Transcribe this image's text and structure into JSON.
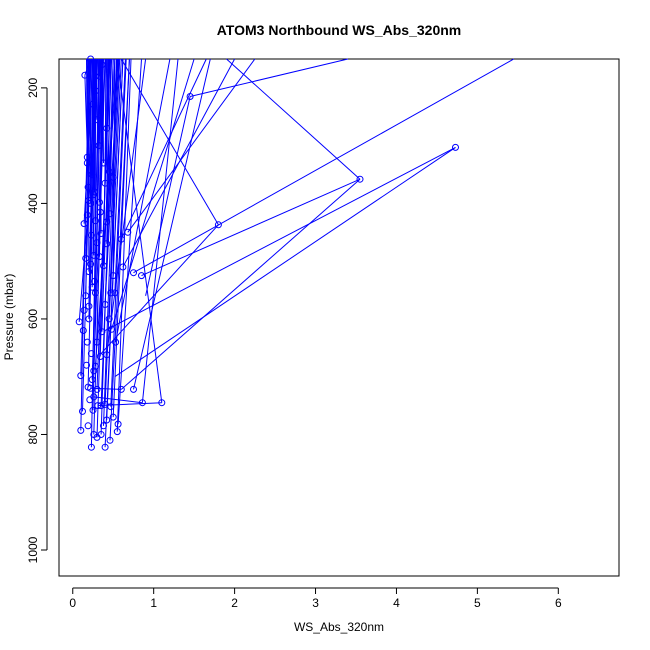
{
  "chart_data": {
    "type": "scatter",
    "title": "ATOM3 Northbound WS_Abs_320nm",
    "xlabel": "WS_Abs_320nm",
    "ylabel": "Pressure (mbar)",
    "xlim": [
      -0.17,
      6.75
    ],
    "ylim": [
      1045,
      150
    ],
    "x_reversed": false,
    "y_reversed": true,
    "x_ticks": [
      0,
      1,
      2,
      3,
      4,
      5,
      6
    ],
    "y_ticks": [
      200,
      400,
      600,
      800,
      1000
    ],
    "grid": false,
    "legend": "none",
    "series_color": "#0000ff",
    "marker": "open-circle",
    "connect_points": true,
    "points": [
      [
        0.15,
        178
      ],
      [
        0.22,
        150
      ],
      [
        0.18,
        320
      ],
      [
        0.2,
        395
      ],
      [
        0.18,
        420
      ],
      [
        0.14,
        435
      ],
      [
        0.16,
        495
      ],
      [
        0.22,
        505
      ],
      [
        0.27,
        535
      ],
      [
        0.28,
        555
      ],
      [
        0.14,
        585
      ],
      [
        0.2,
        600
      ],
      [
        0.08,
        605
      ],
      [
        0.13,
        620
      ],
      [
        0.18,
        640
      ],
      [
        0.23,
        660
      ],
      [
        0.17,
        680
      ],
      [
        0.1,
        698
      ],
      [
        0.21,
        740
      ],
      [
        0.12,
        760
      ],
      [
        0.25,
        758
      ],
      [
        0.19,
        785
      ],
      [
        0.1,
        793
      ],
      [
        0.26,
        800
      ],
      [
        0.3,
        805
      ],
      [
        0.23,
        822
      ],
      [
        0.35,
        800
      ],
      [
        0.38,
        785
      ],
      [
        0.42,
        775
      ],
      [
        0.5,
        770
      ],
      [
        0.55,
        795
      ],
      [
        0.47,
        752
      ],
      [
        0.4,
        748
      ],
      [
        0.35,
        750
      ],
      [
        0.3,
        722
      ],
      [
        0.26,
        690
      ],
      [
        0.34,
        665
      ],
      [
        0.3,
        640
      ],
      [
        0.36,
        622
      ],
      [
        0.45,
        600
      ],
      [
        0.4,
        575
      ],
      [
        0.47,
        555
      ],
      [
        0.52,
        555
      ],
      [
        0.5,
        525
      ],
      [
        0.38,
        508
      ],
      [
        0.33,
        492
      ],
      [
        0.42,
        470
      ],
      [
        0.35,
        452
      ],
      [
        0.42,
        432
      ],
      [
        0.46,
        418
      ],
      [
        0.33,
        398
      ],
      [
        0.27,
        380
      ],
      [
        0.4,
        365
      ],
      [
        0.5,
        355
      ],
      [
        0.45,
        345
      ],
      [
        0.38,
        330
      ],
      [
        0.32,
        300
      ],
      [
        0.42,
        270
      ],
      [
        0.3,
        255
      ],
      [
        0.25,
        228
      ],
      [
        0.28,
        205
      ],
      [
        0.33,
        180
      ],
      [
        0.36,
        160
      ],
      [
        0.6,
        462
      ],
      [
        0.62,
        510
      ],
      [
        0.68,
        450
      ],
      [
        0.75,
        520
      ],
      [
        0.85,
        525
      ],
      [
        0.6,
        722
      ],
      [
        0.75,
        722
      ],
      [
        0.86,
        745
      ],
      [
        1.1,
        745
      ],
      [
        0.56,
        782
      ],
      [
        0.46,
        810
      ],
      [
        0.4,
        822
      ],
      [
        0.31,
        750
      ],
      [
        0.26,
        735
      ],
      [
        0.22,
        720
      ],
      [
        1.45,
        215
      ],
      [
        1.8,
        437
      ],
      [
        3.55,
        358
      ],
      [
        4.73,
        303
      ],
      [
        0.48,
        618
      ],
      [
        0.53,
        640
      ],
      [
        0.42,
        662
      ],
      [
        0.28,
        682
      ],
      [
        0.24,
        705
      ],
      [
        0.19,
        718
      ],
      [
        0.16,
        560
      ],
      [
        0.2,
        578
      ],
      [
        0.24,
        545
      ],
      [
        0.2,
        518
      ],
      [
        0.26,
        490
      ],
      [
        0.3,
        468
      ],
      [
        0.23,
        455
      ],
      [
        0.28,
        430
      ],
      [
        0.34,
        415
      ],
      [
        0.22,
        400
      ],
      [
        0.26,
        385
      ],
      [
        0.19,
        372
      ],
      [
        0.24,
        350
      ],
      [
        0.18,
        330
      ]
    ],
    "pairs": [
      [
        [
          0.15,
          178
        ],
        [
          0.22,
          150
        ]
      ],
      [
        [
          0.18,
          320
        ],
        [
          0.22,
          150
        ]
      ],
      [
        [
          0.2,
          395
        ],
        [
          0.15,
          178
        ]
      ],
      [
        [
          0.14,
          435
        ],
        [
          0.25,
          150
        ]
      ],
      [
        [
          0.16,
          495
        ],
        [
          0.3,
          150
        ]
      ],
      [
        [
          0.2,
          600
        ],
        [
          0.28,
          150
        ]
      ],
      [
        [
          0.08,
          605
        ],
        [
          0.2,
          395
        ]
      ],
      [
        [
          0.1,
          698
        ],
        [
          0.18,
          320
        ]
      ],
      [
        [
          0.12,
          760
        ],
        [
          0.24,
          150
        ]
      ],
      [
        [
          0.25,
          758
        ],
        [
          0.35,
          150
        ]
      ],
      [
        [
          0.1,
          793
        ],
        [
          0.2,
          150
        ]
      ],
      [
        [
          0.23,
          822
        ],
        [
          0.32,
          150
        ]
      ],
      [
        [
          0.26,
          800
        ],
        [
          0.4,
          150
        ]
      ],
      [
        [
          0.3,
          805
        ],
        [
          0.45,
          150
        ]
      ],
      [
        [
          0.35,
          800
        ],
        [
          0.5,
          150
        ]
      ],
      [
        [
          0.38,
          785
        ],
        [
          0.55,
          150
        ]
      ],
      [
        [
          0.42,
          775
        ],
        [
          0.62,
          150
        ]
      ],
      [
        [
          0.5,
          770
        ],
        [
          0.7,
          150
        ]
      ],
      [
        [
          0.55,
          795
        ],
        [
          0.72,
          150
        ]
      ],
      [
        [
          0.47,
          752
        ],
        [
          0.66,
          150
        ]
      ],
      [
        [
          0.4,
          748
        ],
        [
          0.58,
          150
        ]
      ],
      [
        [
          0.35,
          750
        ],
        [
          0.52,
          150
        ]
      ],
      [
        [
          0.3,
          722
        ],
        [
          0.46,
          150
        ]
      ],
      [
        [
          0.26,
          690
        ],
        [
          0.4,
          150
        ]
      ],
      [
        [
          0.34,
          665
        ],
        [
          0.44,
          150
        ]
      ],
      [
        [
          0.3,
          640
        ],
        [
          0.38,
          150
        ]
      ],
      [
        [
          0.36,
          622
        ],
        [
          0.48,
          150
        ]
      ],
      [
        [
          0.45,
          600
        ],
        [
          0.6,
          150
        ]
      ],
      [
        [
          0.4,
          575
        ],
        [
          0.56,
          150
        ]
      ],
      [
        [
          0.47,
          555
        ],
        [
          0.54,
          150
        ]
      ],
      [
        [
          0.52,
          555
        ],
        [
          0.65,
          150
        ]
      ],
      [
        [
          0.5,
          525
        ],
        [
          0.52,
          150
        ]
      ],
      [
        [
          0.38,
          508
        ],
        [
          0.42,
          150
        ]
      ],
      [
        [
          0.33,
          492
        ],
        [
          0.36,
          150
        ]
      ],
      [
        [
          0.42,
          470
        ],
        [
          0.47,
          150
        ]
      ],
      [
        [
          0.35,
          452
        ],
        [
          0.34,
          150
        ]
      ],
      [
        [
          0.42,
          432
        ],
        [
          0.43,
          150
        ]
      ],
      [
        [
          0.46,
          418
        ],
        [
          0.5,
          150
        ]
      ],
      [
        [
          0.33,
          398
        ],
        [
          0.31,
          150
        ]
      ],
      [
        [
          0.27,
          380
        ],
        [
          0.26,
          150
        ]
      ],
      [
        [
          0.4,
          365
        ],
        [
          0.41,
          150
        ]
      ],
      [
        [
          0.5,
          355
        ],
        [
          0.57,
          150
        ]
      ],
      [
        [
          0.45,
          345
        ],
        [
          0.44,
          150
        ]
      ],
      [
        [
          0.38,
          330
        ],
        [
          0.37,
          150
        ]
      ],
      [
        [
          0.32,
          300
        ],
        [
          0.33,
          150
        ]
      ],
      [
        [
          0.42,
          270
        ],
        [
          0.46,
          150
        ]
      ],
      [
        [
          0.3,
          255
        ],
        [
          0.29,
          150
        ]
      ],
      [
        [
          0.25,
          228
        ],
        [
          0.23,
          150
        ]
      ],
      [
        [
          0.28,
          205
        ],
        [
          0.27,
          150
        ]
      ],
      [
        [
          0.33,
          180
        ],
        [
          0.34,
          150
        ]
      ],
      [
        [
          0.36,
          160
        ],
        [
          0.38,
          150
        ]
      ],
      [
        [
          0.6,
          462
        ],
        [
          1.65,
          150
        ]
      ],
      [
        [
          0.62,
          510
        ],
        [
          2.0,
          150
        ]
      ],
      [
        [
          0.68,
          450
        ],
        [
          2.25,
          150
        ]
      ],
      [
        [
          0.75,
          520
        ],
        [
          5.45,
          150
        ]
      ],
      [
        [
          0.85,
          525
        ],
        [
          3.55,
          358
        ]
      ],
      [
        [
          0.6,
          722
        ],
        [
          3.55,
          358
        ]
      ],
      [
        [
          0.75,
          722
        ],
        [
          1.7,
          150
        ]
      ],
      [
        [
          0.86,
          745
        ],
        [
          1.3,
          150
        ]
      ],
      [
        [
          1.1,
          745
        ],
        [
          0.55,
          150
        ]
      ],
      [
        [
          0.56,
          782
        ],
        [
          0.85,
          150
        ]
      ],
      [
        [
          0.46,
          810
        ],
        [
          0.7,
          150
        ]
      ],
      [
        [
          0.4,
          822
        ],
        [
          0.62,
          150
        ]
      ],
      [
        [
          0.31,
          750
        ],
        [
          1.1,
          745
        ]
      ],
      [
        [
          0.26,
          735
        ],
        [
          0.86,
          745
        ]
      ],
      [
        [
          0.22,
          720
        ],
        [
          0.6,
          722
        ]
      ],
      [
        [
          1.45,
          215
        ],
        [
          3.4,
          150
        ]
      ],
      [
        [
          1.8,
          437
        ],
        [
          0.6,
          150
        ]
      ],
      [
        [
          3.55,
          358
        ],
        [
          1.9,
          150
        ]
      ],
      [
        [
          4.73,
          303
        ],
        [
          0.4,
          620
        ]
      ],
      [
        [
          4.73,
          303
        ],
        [
          0.52,
          700
        ]
      ],
      [
        [
          1.8,
          437
        ],
        [
          0.35,
          660
        ]
      ],
      [
        [
          1.45,
          215
        ],
        [
          0.9,
          560
        ]
      ],
      [
        [
          0.48,
          618
        ],
        [
          1.5,
          150
        ]
      ],
      [
        [
          0.53,
          640
        ],
        [
          1.2,
          150
        ]
      ],
      [
        [
          0.42,
          662
        ],
        [
          0.9,
          150
        ]
      ],
      [
        [
          0.28,
          682
        ],
        [
          0.55,
          150
        ]
      ],
      [
        [
          0.24,
          705
        ],
        [
          0.36,
          150
        ]
      ],
      [
        [
          0.19,
          718
        ],
        [
          0.29,
          150
        ]
      ],
      [
        [
          0.16,
          560
        ],
        [
          0.21,
          150
        ]
      ],
      [
        [
          0.2,
          578
        ],
        [
          0.26,
          150
        ]
      ],
      [
        [
          0.24,
          545
        ],
        [
          0.3,
          150
        ]
      ],
      [
        [
          0.2,
          518
        ],
        [
          0.19,
          150
        ]
      ],
      [
        [
          0.26,
          490
        ],
        [
          0.27,
          150
        ]
      ],
      [
        [
          0.3,
          468
        ],
        [
          0.32,
          150
        ]
      ],
      [
        [
          0.23,
          455
        ],
        [
          0.22,
          150
        ]
      ],
      [
        [
          0.28,
          430
        ],
        [
          0.28,
          150
        ]
      ],
      [
        [
          0.34,
          415
        ],
        [
          0.37,
          150
        ]
      ],
      [
        [
          0.22,
          400
        ],
        [
          0.2,
          150
        ]
      ],
      [
        [
          0.26,
          385
        ],
        [
          0.25,
          150
        ]
      ],
      [
        [
          0.19,
          372
        ],
        [
          0.18,
          150
        ]
      ],
      [
        [
          0.24,
          350
        ],
        [
          0.24,
          150
        ]
      ],
      [
        [
          0.18,
          330
        ],
        [
          0.17,
          150
        ]
      ]
    ]
  }
}
